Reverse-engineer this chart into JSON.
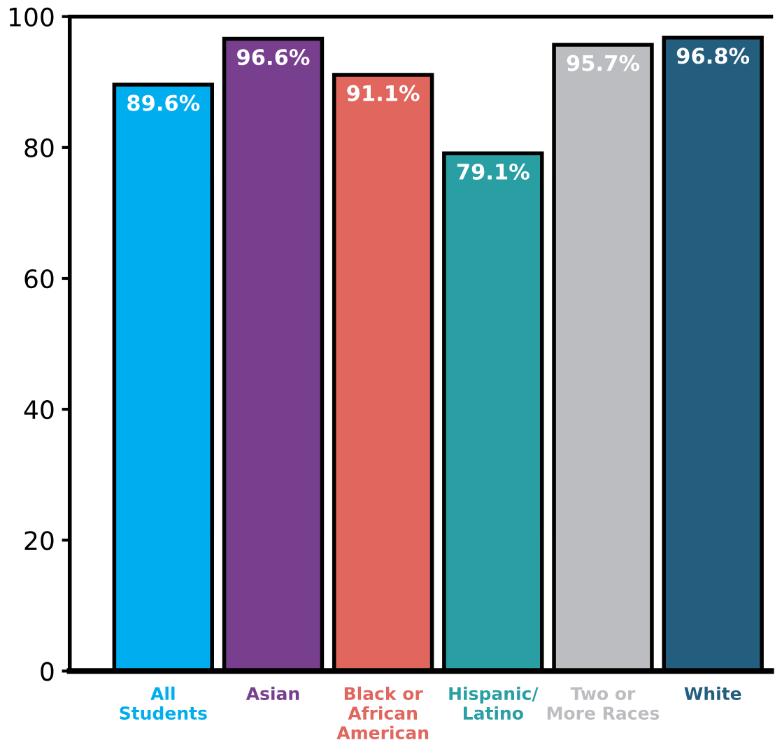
{
  "chart_data": {
    "type": "bar",
    "categories": [
      "All\nStudents",
      "Asian",
      "Black or\nAfrican\nAmerican",
      "Hispanic/\nLatino",
      "Two or\nMore Races",
      "White"
    ],
    "values": [
      89.6,
      96.6,
      91.1,
      79.1,
      95.7,
      96.8
    ],
    "colors": [
      "#00aeef",
      "#783f8f",
      "#e0665e",
      "#2a9fa3",
      "#bcbdc0",
      "#245e7e"
    ],
    "value_labels": [
      "89.6%",
      "96.6%",
      "91.1%",
      "79.1%",
      "95.7%",
      "96.8%"
    ],
    "ylim": [
      0,
      100
    ],
    "yticks": [
      0,
      20,
      40,
      60,
      80,
      100
    ],
    "grid": false
  }
}
